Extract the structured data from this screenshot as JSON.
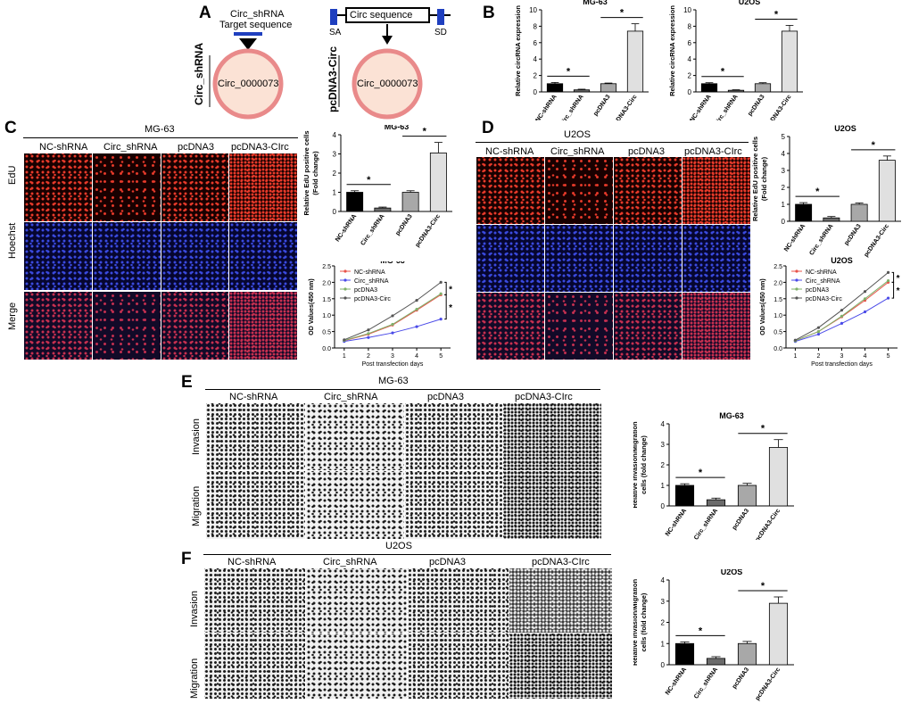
{
  "panels": {
    "A": "A",
    "B": "B",
    "C": "C",
    "D": "D",
    "E": "E",
    "F": "F"
  },
  "panelA": {
    "target_label_line1": "Circ_shRNA",
    "target_label_line2": "Target sequence",
    "side_label_left": "Circ_shRNA",
    "circle_label": "Circ_0000073",
    "circ_sequence": "Circ sequence",
    "sa": "SA",
    "sd": "SD",
    "side_label_right": "pcDNA3-Circ"
  },
  "imageRows": {
    "edu": "EdU",
    "hoechst": "Hoechst",
    "merge": "Merge",
    "invasion": "Invasion",
    "migration": "Migration"
  },
  "groupsPanelC": [
    "NC-shRNA",
    "Circ_shRNA",
    "pcDNA3",
    "pcDNA3-CIrc"
  ],
  "groupsPanelF": [
    "NC-shRNA",
    "Circ_shRNA",
    "pcDNA3",
    "pcDNA3-CIrc"
  ],
  "cellLines": {
    "mg63": "MG-63",
    "u2os": "U2OS"
  },
  "colors": {
    "ncBar": "#000000",
    "circBar": "#6b6b6b",
    "pcBar": "#a8a8a8",
    "pcCircBar": "#e0e0e0",
    "lineNC": "#e8534a",
    "lineCirc": "#4a4ae8",
    "linePc": "#7fb06a",
    "linePcCirc": "#555555",
    "circleFill": "#fbe2d5",
    "circleStroke": "#e98a8a",
    "shRNA": "#1f3fbf"
  },
  "chart_data": [
    {
      "id": "B-MG63",
      "type": "bar",
      "title": "MG-63",
      "ylabel": "Relative circRNA expression",
      "ylim": [
        0,
        10
      ],
      "yticks": [
        0,
        2,
        4,
        6,
        8,
        10
      ],
      "categories": [
        "NC-shRNA",
        "Circ_shRNA",
        "pcDNA3",
        "pcDNA3-Circ"
      ],
      "values": [
        1.0,
        0.25,
        1.0,
        7.4
      ],
      "errors": [
        0.15,
        0.08,
        0.08,
        0.9
      ],
      "significance": [
        [
          0,
          1,
          "*"
        ],
        [
          2,
          3,
          "*"
        ]
      ]
    },
    {
      "id": "B-U2OS",
      "type": "bar",
      "title": "U2OS",
      "ylabel": "Relative circRNA expression",
      "ylim": [
        0,
        10
      ],
      "yticks": [
        0,
        2,
        4,
        6,
        8,
        10
      ],
      "categories": [
        "NC-shRNA",
        "Circ_shRNA",
        "pcDNA3",
        "pcDNA3-Circ"
      ],
      "values": [
        1.0,
        0.2,
        1.0,
        7.4
      ],
      "errors": [
        0.12,
        0.06,
        0.12,
        0.7
      ],
      "significance": [
        [
          0,
          1,
          "*"
        ],
        [
          2,
          3,
          "*"
        ]
      ]
    },
    {
      "id": "C-MG63-edu",
      "type": "bar",
      "title": "MG-63",
      "ylabel": "Relative EdU positive cells (Fold change)",
      "ylim": [
        0,
        4
      ],
      "yticks": [
        0,
        1,
        2,
        3,
        4
      ],
      "categories": [
        "NC-shRNA",
        "Circ_shRNA",
        "pcDNA3",
        "pcDNA3-Circ"
      ],
      "values": [
        1.0,
        0.18,
        1.0,
        3.05
      ],
      "errors": [
        0.08,
        0.05,
        0.08,
        0.55
      ],
      "significance": [
        [
          0,
          1,
          "*"
        ],
        [
          2,
          3,
          "*"
        ]
      ]
    },
    {
      "id": "C-MG63-cck8",
      "type": "line",
      "title": "MG-63",
      "xlabel": "Post transfection days",
      "ylabel": "OD Values(450 nm)",
      "ylim": [
        0.0,
        2.5
      ],
      "yticks": [
        0.0,
        0.5,
        1.0,
        1.5,
        2.0,
        2.5
      ],
      "x": [
        1,
        2,
        3,
        4,
        5
      ],
      "series": [
        {
          "name": "NC-shRNA",
          "values": [
            0.22,
            0.42,
            0.7,
            1.15,
            1.62
          ]
        },
        {
          "name": "Circ_shRNA",
          "values": [
            0.2,
            0.32,
            0.46,
            0.65,
            0.88
          ]
        },
        {
          "name": "pcDNA3",
          "values": [
            0.23,
            0.44,
            0.72,
            1.18,
            1.65
          ]
        },
        {
          "name": "pcDNA3-Circ",
          "values": [
            0.25,
            0.55,
            0.98,
            1.45,
            2.0
          ]
        }
      ],
      "significance": [
        "*",
        "*"
      ]
    },
    {
      "id": "D-U2OS-edu",
      "type": "bar",
      "title": "U2OS",
      "ylabel": "Relative EdU positive cells (Fold change)",
      "ylim": [
        0,
        5
      ],
      "yticks": [
        0,
        1,
        2,
        3,
        4,
        5
      ],
      "categories": [
        "NC-shRNA",
        "Circ_shRNA",
        "pcDNA3",
        "pcDNA3-Circ"
      ],
      "values": [
        1.0,
        0.2,
        1.0,
        3.6
      ],
      "errors": [
        0.1,
        0.08,
        0.08,
        0.25
      ],
      "significance": [
        [
          0,
          1,
          "*"
        ],
        [
          2,
          3,
          "*"
        ]
      ]
    },
    {
      "id": "D-U2OS-cck8",
      "type": "line",
      "title": "U2OS",
      "xlabel": "Post transfection days",
      "ylabel": "OD Values(450 nm)",
      "ylim": [
        0.0,
        2.5
      ],
      "yticks": [
        0.0,
        0.5,
        1.0,
        1.5,
        2.0,
        2.5
      ],
      "x": [
        1,
        2,
        3,
        4,
        5
      ],
      "series": [
        {
          "name": "NC-shRNA",
          "values": [
            0.22,
            0.5,
            0.95,
            1.45,
            2.0
          ]
        },
        {
          "name": "Circ_shRNA",
          "values": [
            0.2,
            0.42,
            0.75,
            1.1,
            1.52
          ]
        },
        {
          "name": "pcDNA3",
          "values": [
            0.22,
            0.5,
            0.97,
            1.5,
            2.05
          ]
        },
        {
          "name": "pcDNA3-Circ",
          "values": [
            0.24,
            0.62,
            1.15,
            1.72,
            2.3
          ]
        }
      ],
      "significance": [
        "*",
        "*"
      ]
    },
    {
      "id": "E-MG63",
      "type": "bar",
      "title": "MG-63",
      "ylabel": "Relative Invasion/Migration cells (fold change)",
      "ylim": [
        0,
        4
      ],
      "yticks": [
        0,
        1,
        2,
        3,
        4
      ],
      "categories": [
        "NC-shRNA",
        "Circ_shRNA",
        "pcDNA3",
        "pcDNA3-Circ"
      ],
      "values": [
        1.0,
        0.3,
        1.0,
        2.85
      ],
      "errors": [
        0.08,
        0.08,
        0.1,
        0.38
      ],
      "significance": [
        [
          0,
          1,
          "*"
        ],
        [
          2,
          3,
          "*"
        ]
      ]
    },
    {
      "id": "F-U2OS",
      "type": "bar",
      "title": "U2OS",
      "ylabel": "Relative Invasion/Migration cells (fold change)",
      "ylim": [
        0,
        4
      ],
      "yticks": [
        0,
        1,
        2,
        3,
        4
      ],
      "categories": [
        "NC-shRNA",
        "Circ_shRNA",
        "pcDNA3",
        "pcDNA3-Circ"
      ],
      "values": [
        1.0,
        0.3,
        1.0,
        2.9
      ],
      "errors": [
        0.08,
        0.08,
        0.1,
        0.3
      ],
      "significance": [
        [
          0,
          1,
          "*"
        ],
        [
          2,
          3,
          "*"
        ]
      ]
    }
  ]
}
